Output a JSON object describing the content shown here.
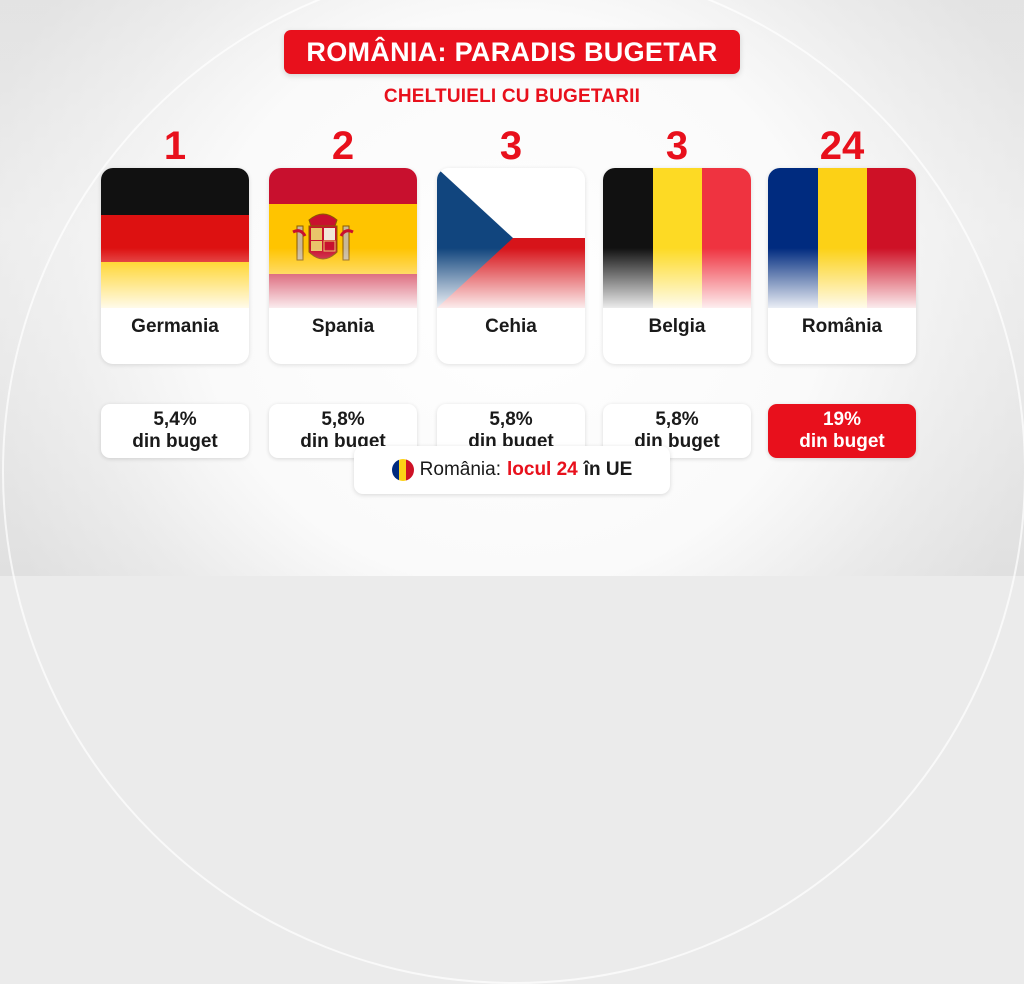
{
  "header": {
    "title": "ROMÂNIA: PARADIS BUGETAR",
    "subtitle": "CHELTUIELI CU BUGETARII"
  },
  "countries": [
    {
      "rank": "1",
      "name": "Germania",
      "value_line1": "5,4%",
      "value_line2": "din buget",
      "flag_icon": "germany-flag-icon"
    },
    {
      "rank": "2",
      "name": "Spania",
      "value_line1": "5,8%",
      "value_line2": "din buget",
      "flag_icon": "spain-flag-icon"
    },
    {
      "rank": "3",
      "name": "Cehia",
      "value_line1": "5,8%",
      "value_line2": "din buget",
      "flag_icon": "czechia-flag-icon"
    },
    {
      "rank": "3",
      "name": "Belgia",
      "value_line1": "5,8%",
      "value_line2": "din buget",
      "flag_icon": "belgium-flag-icon"
    },
    {
      "rank": "24",
      "name": "România",
      "value_line1": "19%",
      "value_line2": "din buget",
      "flag_icon": "romania-flag-icon"
    }
  ],
  "footer": {
    "prefix": "România:",
    "highlight": "locul 24",
    "suffix": "în UE",
    "icon": "romania-flag-dot-icon"
  },
  "colors": {
    "accent": "#e8101c",
    "text": "#1a1a1a"
  }
}
